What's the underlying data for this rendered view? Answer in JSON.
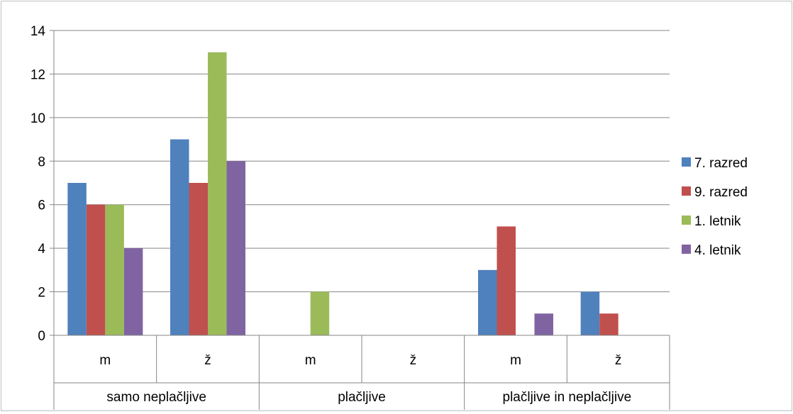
{
  "chart_data": {
    "type": "bar",
    "categories": [
      {
        "group": "samo neplačljive",
        "sub": "m"
      },
      {
        "group": "samo neplačljive",
        "sub": "ž"
      },
      {
        "group": "plačljive",
        "sub": "m"
      },
      {
        "group": "plačljive",
        "sub": "ž"
      },
      {
        "group": "plačljive in neplačljive",
        "sub": "m"
      },
      {
        "group": "plačljive in neplačljive",
        "sub": "ž"
      }
    ],
    "groups": [
      "samo neplačljive",
      "plačljive",
      "plačljive in neplačljive"
    ],
    "series": [
      {
        "name": "7. razred",
        "color": "#4F81BD",
        "values": [
          7,
          9,
          0,
          0,
          3,
          2
        ]
      },
      {
        "name": "9. razred",
        "color": "#C0504D",
        "values": [
          6,
          7,
          0,
          0,
          5,
          1
        ]
      },
      {
        "name": "1. letnik",
        "color": "#9BBB59",
        "values": [
          6,
          13,
          2,
          0,
          0,
          0
        ]
      },
      {
        "name": "4. letnik",
        "color": "#8064A2",
        "values": [
          4,
          8,
          0,
          0,
          1,
          0
        ]
      }
    ],
    "y_ticks": [
      "0",
      "2",
      "4",
      "6",
      "8",
      "10",
      "12",
      "14"
    ],
    "ylim": [
      0,
      14
    ],
    "grid": true,
    "legend_position": "right",
    "title": "",
    "xlabel": "",
    "ylabel": ""
  }
}
